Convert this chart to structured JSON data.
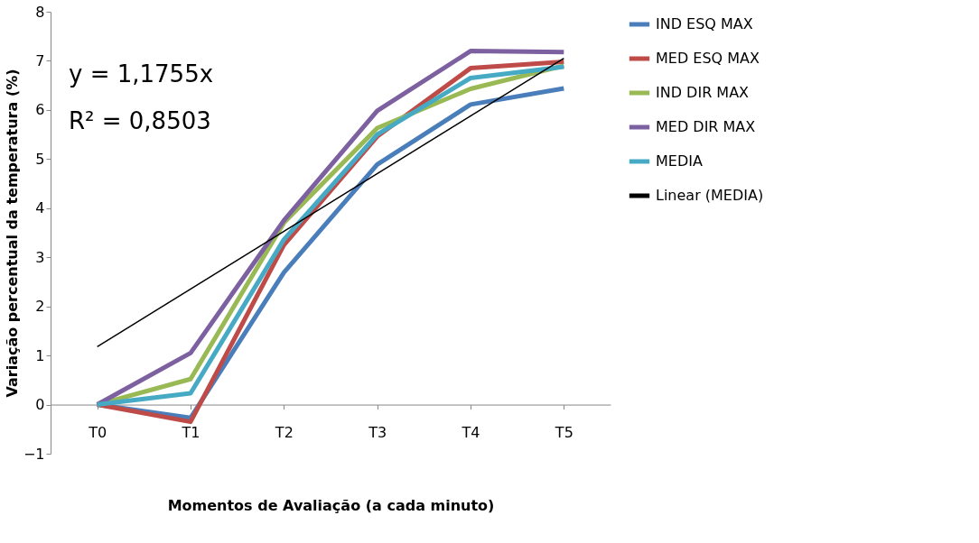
{
  "chart_data": {
    "type": "line",
    "xlabel": "Momentos de Avaliação (a cada minuto)",
    "ylabel": "Variação percentual da temperatura (%)",
    "categories": [
      "T0",
      "T1",
      "T2",
      "T3",
      "T4",
      "T5"
    ],
    "series": [
      {
        "name": "IND ESQ MAX",
        "color": "#4a7ebb",
        "values": [
          0,
          -0.27,
          2.69,
          4.89,
          6.11,
          6.44
        ]
      },
      {
        "name": "MED ESQ MAX",
        "color": "#be4b48",
        "values": [
          0,
          -0.35,
          3.25,
          5.46,
          6.85,
          6.98
        ]
      },
      {
        "name": "IND DIR MAX",
        "color": "#98b954",
        "values": [
          0,
          0.52,
          3.7,
          5.63,
          6.43,
          6.9
        ]
      },
      {
        "name": "MED DIR MAX",
        "color": "#7d60a0",
        "values": [
          0,
          1.05,
          3.75,
          5.98,
          7.2,
          7.18
        ]
      },
      {
        "name": "MEDIA",
        "color": "#46aac5",
        "values": [
          0,
          0.23,
          3.36,
          5.5,
          6.65,
          6.88
        ]
      },
      {
        "name": "Linear (MEDIA)",
        "color": "#000000",
        "type": "line",
        "x": [
          "T0",
          "T5"
        ],
        "values": [
          1.18,
          7.05
        ]
      }
    ],
    "ylim": [
      -1,
      8
    ],
    "yticks": [
      -1,
      0,
      1,
      2,
      3,
      4,
      5,
      6,
      7,
      8
    ],
    "grid": false,
    "legend": "right",
    "marker": "none",
    "line_style": "solid",
    "annotations": [
      "y = 1,1755x",
      "R² = 0,8503"
    ]
  }
}
